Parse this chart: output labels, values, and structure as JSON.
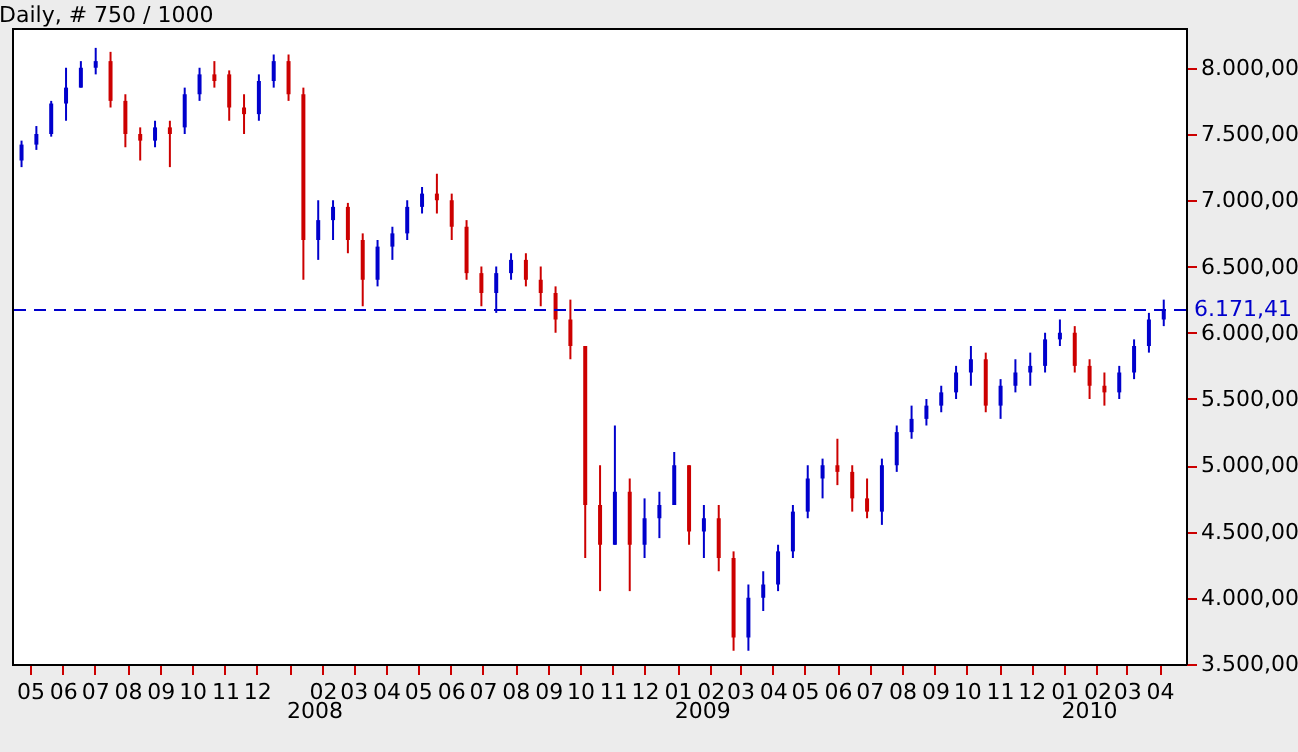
{
  "chart_data": {
    "type": "candlestick",
    "title": "Daily, # 750 / 1000",
    "x": [
      "2007-04-23",
      "2007-05-07",
      "2007-05-21",
      "2007-06-04",
      "2007-06-18",
      "2007-07-02",
      "2007-07-16",
      "2007-07-30",
      "2007-08-13",
      "2007-08-27",
      "2007-09-10",
      "2007-09-24",
      "2007-10-08",
      "2007-10-22",
      "2007-11-05",
      "2007-11-19",
      "2007-12-03",
      "2007-12-17",
      "2007-12-31",
      "2008-01-14",
      "2008-01-28",
      "2008-02-11",
      "2008-02-25",
      "2008-03-10",
      "2008-03-24",
      "2008-04-07",
      "2008-04-21",
      "2008-05-05",
      "2008-05-19",
      "2008-06-02",
      "2008-06-16",
      "2008-06-30",
      "2008-07-14",
      "2008-07-28",
      "2008-08-11",
      "2008-08-25",
      "2008-09-08",
      "2008-09-22",
      "2008-10-06",
      "2008-10-20",
      "2008-11-03",
      "2008-11-17",
      "2008-12-01",
      "2008-12-15",
      "2008-12-29",
      "2009-01-12",
      "2009-01-26",
      "2009-02-09",
      "2009-02-23",
      "2009-03-09",
      "2009-03-23",
      "2009-04-06",
      "2009-04-20",
      "2009-05-04",
      "2009-05-18",
      "2009-06-01",
      "2009-06-15",
      "2009-06-29",
      "2009-07-13",
      "2009-07-27",
      "2009-08-10",
      "2009-08-24",
      "2009-09-07",
      "2009-09-21",
      "2009-10-05",
      "2009-10-19",
      "2009-11-02",
      "2009-11-16",
      "2009-11-30",
      "2009-12-14",
      "2009-12-28",
      "2010-01-11",
      "2010-01-25",
      "2010-02-08",
      "2010-02-22",
      "2010-03-08",
      "2010-03-22",
      "2010-04-05"
    ],
    "ohlc": [
      [
        7300,
        7450,
        7250,
        7420
      ],
      [
        7420,
        7560,
        7380,
        7500
      ],
      [
        7500,
        7750,
        7480,
        7730
      ],
      [
        7730,
        8000,
        7600,
        7850
      ],
      [
        7850,
        8050,
        7850,
        8000
      ],
      [
        8000,
        8150,
        7950,
        8050
      ],
      [
        8050,
        8120,
        7700,
        7750
      ],
      [
        7750,
        7800,
        7400,
        7500
      ],
      [
        7500,
        7550,
        7300,
        7450
      ],
      [
        7450,
        7600,
        7400,
        7550
      ],
      [
        7550,
        7600,
        7250,
        7500
      ],
      [
        7550,
        7850,
        7500,
        7800
      ],
      [
        7800,
        8000,
        7750,
        7950
      ],
      [
        7950,
        8050,
        7850,
        7900
      ],
      [
        7950,
        7980,
        7600,
        7700
      ],
      [
        7700,
        7800,
        7500,
        7650
      ],
      [
        7650,
        7950,
        7600,
        7900
      ],
      [
        7900,
        8100,
        7850,
        8050
      ],
      [
        8050,
        8100,
        7750,
        7800
      ],
      [
        7800,
        7850,
        6400,
        6700
      ],
      [
        6700,
        7000,
        6550,
        6850
      ],
      [
        6850,
        7000,
        6700,
        6950
      ],
      [
        6950,
        6980,
        6600,
        6700
      ],
      [
        6700,
        6750,
        6200,
        6400
      ],
      [
        6400,
        6700,
        6350,
        6650
      ],
      [
        6650,
        6800,
        6550,
        6750
      ],
      [
        6750,
        7000,
        6700,
        6950
      ],
      [
        6950,
        7100,
        6900,
        7050
      ],
      [
        7050,
        7200,
        6900,
        7000
      ],
      [
        7000,
        7050,
        6700,
        6800
      ],
      [
        6800,
        6850,
        6400,
        6450
      ],
      [
        6450,
        6500,
        6200,
        6300
      ],
      [
        6300,
        6500,
        6150,
        6450
      ],
      [
        6450,
        6600,
        6400,
        6550
      ],
      [
        6550,
        6600,
        6350,
        6400
      ],
      [
        6400,
        6500,
        6200,
        6300
      ],
      [
        6300,
        6350,
        6000,
        6100
      ],
      [
        6100,
        6250,
        5800,
        5900
      ],
      [
        5900,
        5900,
        4300,
        4700
      ],
      [
        4700,
        5000,
        4050,
        4400
      ],
      [
        4400,
        5300,
        4400,
        4800
      ],
      [
        4800,
        4900,
        4050,
        4400
      ],
      [
        4400,
        4750,
        4300,
        4600
      ],
      [
        4600,
        4800,
        4450,
        4700
      ],
      [
        4700,
        5100,
        4700,
        5000
      ],
      [
        5000,
        5000,
        4400,
        4500
      ],
      [
        4500,
        4700,
        4300,
        4600
      ],
      [
        4600,
        4700,
        4200,
        4300
      ],
      [
        4300,
        4350,
        3600,
        3700
      ],
      [
        3700,
        4100,
        3600,
        4000
      ],
      [
        4000,
        4200,
        3900,
        4100
      ],
      [
        4100,
        4400,
        4050,
        4350
      ],
      [
        4350,
        4700,
        4300,
        4650
      ],
      [
        4650,
        5000,
        4600,
        4900
      ],
      [
        4900,
        5050,
        4750,
        5000
      ],
      [
        5000,
        5200,
        4850,
        4950
      ],
      [
        4950,
        5000,
        4650,
        4750
      ],
      [
        4750,
        4900,
        4600,
        4650
      ],
      [
        4650,
        5050,
        4550,
        5000
      ],
      [
        5000,
        5300,
        4950,
        5250
      ],
      [
        5250,
        5450,
        5200,
        5350
      ],
      [
        5350,
        5500,
        5300,
        5450
      ],
      [
        5450,
        5600,
        5400,
        5550
      ],
      [
        5550,
        5750,
        5500,
        5700
      ],
      [
        5700,
        5900,
        5600,
        5800
      ],
      [
        5800,
        5850,
        5400,
        5450
      ],
      [
        5450,
        5650,
        5350,
        5600
      ],
      [
        5600,
        5800,
        5550,
        5700
      ],
      [
        5700,
        5850,
        5600,
        5750
      ],
      [
        5750,
        6000,
        5700,
        5950
      ],
      [
        5950,
        6100,
        5900,
        6000
      ],
      [
        6000,
        6050,
        5700,
        5750
      ],
      [
        5750,
        5800,
        5500,
        5600
      ],
      [
        5600,
        5700,
        5450,
        5550
      ],
      [
        5550,
        5750,
        5500,
        5700
      ],
      [
        5700,
        5950,
        5650,
        5900
      ],
      [
        5900,
        6150,
        5850,
        6100
      ],
      [
        6100,
        6250,
        6050,
        6170
      ]
    ],
    "colors": [
      "#0000cc",
      "#0000cc",
      "#0000cc",
      "#0000cc",
      "#0000cc",
      "#0000cc",
      "#cc0000",
      "#cc0000",
      "#cc0000",
      "#0000cc",
      "#cc0000",
      "#0000cc",
      "#0000cc",
      "#cc0000",
      "#cc0000",
      "#cc0000",
      "#0000cc",
      "#0000cc",
      "#cc0000",
      "#cc0000",
      "#0000cc",
      "#0000cc",
      "#cc0000",
      "#cc0000",
      "#0000cc",
      "#0000cc",
      "#0000cc",
      "#0000cc",
      "#cc0000",
      "#cc0000",
      "#cc0000",
      "#cc0000",
      "#0000cc",
      "#0000cc",
      "#cc0000",
      "#cc0000",
      "#cc0000",
      "#cc0000",
      "#cc0000",
      "#cc0000",
      "#0000cc",
      "#cc0000",
      "#0000cc",
      "#0000cc",
      "#0000cc",
      "#cc0000",
      "#0000cc",
      "#cc0000",
      "#cc0000",
      "#0000cc",
      "#0000cc",
      "#0000cc",
      "#0000cc",
      "#0000cc",
      "#0000cc",
      "#cc0000",
      "#cc0000",
      "#cc0000",
      "#0000cc",
      "#0000cc",
      "#0000cc",
      "#0000cc",
      "#0000cc",
      "#0000cc",
      "#0000cc",
      "#cc0000",
      "#0000cc",
      "#0000cc",
      "#0000cc",
      "#0000cc",
      "#0000cc",
      "#cc0000",
      "#cc0000",
      "#cc0000",
      "#0000cc",
      "#0000cc",
      "#0000cc",
      "#0000cc"
    ],
    "xlim": [
      "2007-04-14",
      "2010-04-26"
    ],
    "xticks": [
      {
        "value": "2007-05-01",
        "label": "05"
      },
      {
        "value": "2007-06-01",
        "label": "06"
      },
      {
        "value": "2007-07-01",
        "label": "07"
      },
      {
        "value": "2007-08-01",
        "label": "08"
      },
      {
        "value": "2007-09-01",
        "label": "09"
      },
      {
        "value": "2007-10-01",
        "label": "10"
      },
      {
        "value": "2007-11-01",
        "label": "11"
      },
      {
        "value": "2007-12-01",
        "label": "12"
      },
      {
        "value": "2008-01-01",
        "label": null
      },
      {
        "value": "2008-02-01",
        "label": "02"
      },
      {
        "value": "2008-03-01",
        "label": "03"
      },
      {
        "value": "2008-04-01",
        "label": "04"
      },
      {
        "value": "2008-05-01",
        "label": "05"
      },
      {
        "value": "2008-06-01",
        "label": "06"
      },
      {
        "value": "2008-07-01",
        "label": "07"
      },
      {
        "value": "2008-08-01",
        "label": "08"
      },
      {
        "value": "2008-09-01",
        "label": "09"
      },
      {
        "value": "2008-10-01",
        "label": "10"
      },
      {
        "value": "2008-11-01",
        "label": "11"
      },
      {
        "value": "2008-12-01",
        "label": "12"
      },
      {
        "value": "2009-01-01",
        "label": "01"
      },
      {
        "value": "2009-02-01",
        "label": "02"
      },
      {
        "value": "2009-03-01",
        "label": "03"
      },
      {
        "value": "2009-04-01",
        "label": "04"
      },
      {
        "value": "2009-05-01",
        "label": "05"
      },
      {
        "value": "2009-06-01",
        "label": "06"
      },
      {
        "value": "2009-07-01",
        "label": "07"
      },
      {
        "value": "2009-08-01",
        "label": "08"
      },
      {
        "value": "2009-09-01",
        "label": "09"
      },
      {
        "value": "2009-10-01",
        "label": "10"
      },
      {
        "value": "2009-11-01",
        "label": "11"
      },
      {
        "value": "2009-12-01",
        "label": "12"
      },
      {
        "value": "2010-01-01",
        "label": "01"
      },
      {
        "value": "2010-02-01",
        "label": "02"
      },
      {
        "value": "2010-03-01",
        "label": "03"
      },
      {
        "value": "2010-04-01",
        "label": "04"
      }
    ],
    "ylim": [
      3500,
      8300
    ],
    "yticks": [
      {
        "value": 3500,
        "label": "3.500,00"
      },
      {
        "value": 4000,
        "label": "4.000,00"
      },
      {
        "value": 4500,
        "label": "4.500,00"
      },
      {
        "value": 5000,
        "label": "5.000,00"
      },
      {
        "value": 5500,
        "label": "5.500,00"
      },
      {
        "value": 6000,
        "label": "6.000,00"
      },
      {
        "value": 6500,
        "label": "6.500,00"
      },
      {
        "value": 7000,
        "label": "7.000,00"
      },
      {
        "value": 7500,
        "label": "7.500,00"
      },
      {
        "value": 8000,
        "label": "8.000,00"
      }
    ],
    "ref_lines": [
      {
        "axis": "y",
        "value": 6171.41,
        "label": "6.171,41",
        "color": "#0000cc",
        "line_style": "dashed"
      }
    ],
    "annotations": [
      "2008",
      "2009",
      "2010"
    ],
    "grid": false
  }
}
